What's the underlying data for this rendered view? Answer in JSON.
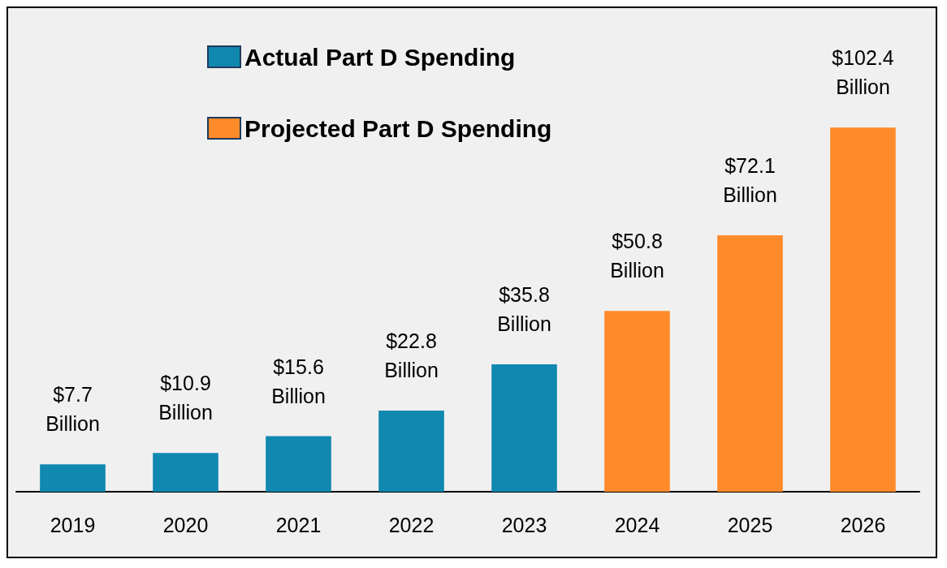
{
  "chart_data": {
    "type": "bar",
    "categories": [
      "2019",
      "2020",
      "2021",
      "2022",
      "2023",
      "2024",
      "2025",
      "2026"
    ],
    "series": [
      {
        "name": "Actual Part D Spending",
        "color": "#1088b0",
        "values": [
          7.7,
          10.9,
          15.6,
          22.8,
          35.8,
          null,
          null,
          null
        ],
        "value_labels": [
          "$7.7\nBillion",
          "$10.9\nBillion",
          "$15.6\nBillion",
          "$22.8\nBillion",
          "$35.8\nBillion",
          null,
          null,
          null
        ]
      },
      {
        "name": "Projected Part D Spending",
        "color": "#ff8a2a",
        "values": [
          null,
          null,
          null,
          null,
          null,
          50.8,
          72.1,
          102.4
        ],
        "value_labels": [
          null,
          null,
          null,
          null,
          null,
          "$50.8\nBillion",
          "$72.1\nBillion",
          "$102.4\nBillion"
        ]
      }
    ],
    "legend": "top left"
  }
}
